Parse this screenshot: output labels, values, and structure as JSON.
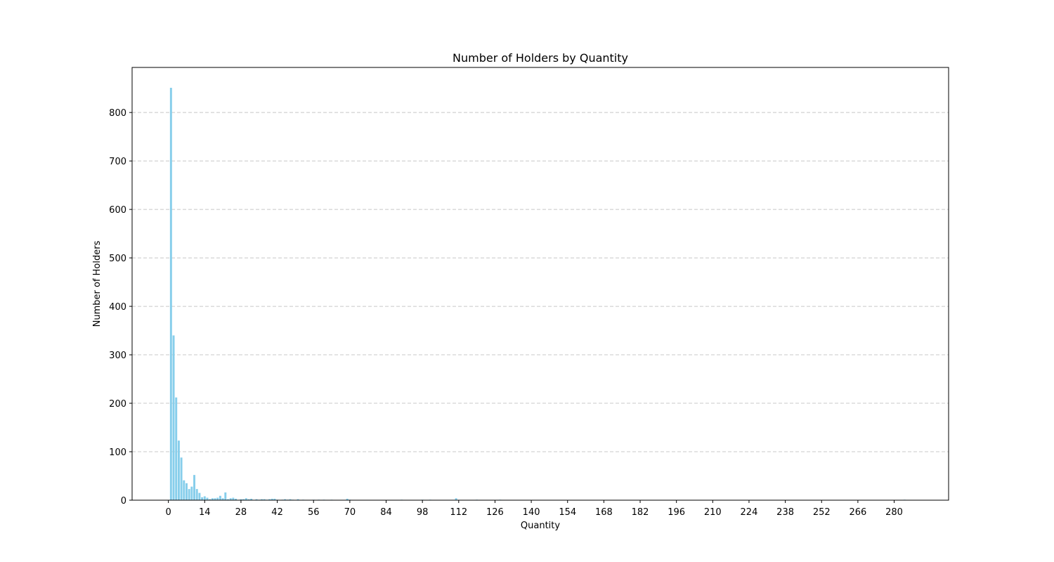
{
  "chart_data": {
    "type": "bar",
    "title": "Number of Holders by Quantity",
    "xlabel": "Quantity",
    "ylabel": "Number of Holders",
    "xlim": [
      -14,
      301
    ],
    "ylim": [
      0,
      893
    ],
    "x_ticks": [
      0,
      14,
      28,
      42,
      56,
      70,
      84,
      98,
      112,
      126,
      140,
      154,
      168,
      182,
      196,
      210,
      224,
      238,
      252,
      266,
      280
    ],
    "y_ticks": [
      0,
      100,
      200,
      300,
      400,
      500,
      600,
      700,
      800
    ],
    "grid": "y-dashed",
    "bar_color": "#87ceeb",
    "bars": [
      {
        "x": 1,
        "y": 851
      },
      {
        "x": 2,
        "y": 340
      },
      {
        "x": 3,
        "y": 212
      },
      {
        "x": 4,
        "y": 123
      },
      {
        "x": 5,
        "y": 88
      },
      {
        "x": 6,
        "y": 41
      },
      {
        "x": 7,
        "y": 35
      },
      {
        "x": 8,
        "y": 23
      },
      {
        "x": 9,
        "y": 28
      },
      {
        "x": 10,
        "y": 52
      },
      {
        "x": 11,
        "y": 23
      },
      {
        "x": 12,
        "y": 15
      },
      {
        "x": 13,
        "y": 6
      },
      {
        "x": 14,
        "y": 8
      },
      {
        "x": 15,
        "y": 5
      },
      {
        "x": 16,
        "y": 2
      },
      {
        "x": 17,
        "y": 4
      },
      {
        "x": 18,
        "y": 4
      },
      {
        "x": 19,
        "y": 5
      },
      {
        "x": 20,
        "y": 9
      },
      {
        "x": 21,
        "y": 4
      },
      {
        "x": 22,
        "y": 16
      },
      {
        "x": 23,
        "y": 2
      },
      {
        "x": 24,
        "y": 4
      },
      {
        "x": 25,
        "y": 5
      },
      {
        "x": 26,
        "y": 3
      },
      {
        "x": 28,
        "y": 2
      },
      {
        "x": 29,
        "y": 2
      },
      {
        "x": 30,
        "y": 4
      },
      {
        "x": 31,
        "y": 2
      },
      {
        "x": 32,
        "y": 3
      },
      {
        "x": 34,
        "y": 2
      },
      {
        "x": 35,
        "y": 1
      },
      {
        "x": 36,
        "y": 2
      },
      {
        "x": 37,
        "y": 2
      },
      {
        "x": 38,
        "y": 1
      },
      {
        "x": 39,
        "y": 2
      },
      {
        "x": 40,
        "y": 3
      },
      {
        "x": 41,
        "y": 3
      },
      {
        "x": 42,
        "y": 1
      },
      {
        "x": 44,
        "y": 1
      },
      {
        "x": 45,
        "y": 2
      },
      {
        "x": 46,
        "y": 1
      },
      {
        "x": 47,
        "y": 2
      },
      {
        "x": 48,
        "y": 1
      },
      {
        "x": 50,
        "y": 2
      },
      {
        "x": 52,
        "y": 1
      },
      {
        "x": 56,
        "y": 1
      },
      {
        "x": 58,
        "y": 1
      },
      {
        "x": 60,
        "y": 1
      },
      {
        "x": 63,
        "y": 1
      },
      {
        "x": 69,
        "y": 3
      },
      {
        "x": 70,
        "y": 1
      },
      {
        "x": 90,
        "y": 1
      },
      {
        "x": 98,
        "y": 1
      },
      {
        "x": 101,
        "y": 1
      },
      {
        "x": 111,
        "y": 4
      },
      {
        "x": 119,
        "y": 1
      },
      {
        "x": 128,
        "y": 1
      },
      {
        "x": 284,
        "y": 1
      }
    ]
  }
}
